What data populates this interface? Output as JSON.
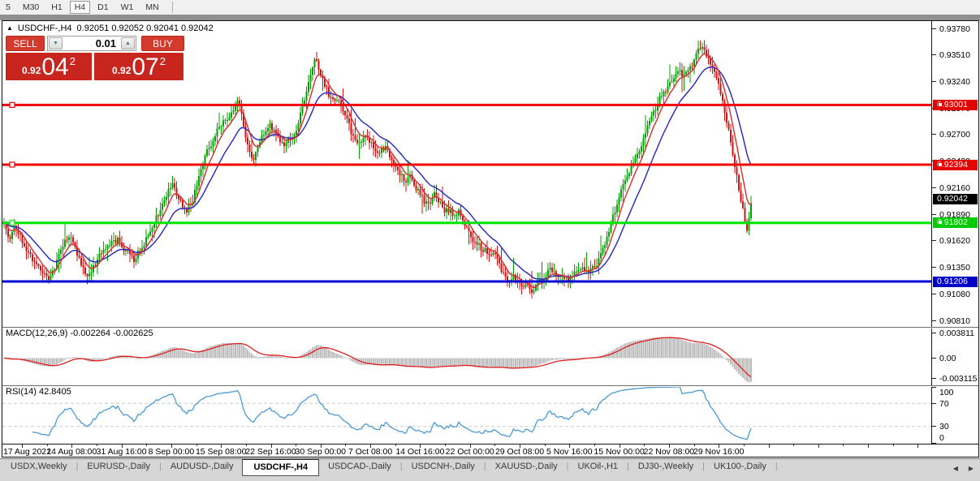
{
  "toolbar": {
    "timeframes": [
      "5",
      "M30",
      "H1",
      "H4",
      "D1",
      "W1",
      "MN"
    ],
    "active": "H4"
  },
  "window": {
    "title": "USDCHF-,H4",
    "quotes_text": "0.92051 0.92052 0.92041 0.92042"
  },
  "icons": {
    "collapse": "▲",
    "spin_down": "▼",
    "spin_up": "▲",
    "tab_nav_left": "◀",
    "tab_nav_right": "▶"
  },
  "trade_panel": {
    "sell_label": "SELL",
    "buy_label": "BUY",
    "lot_value": "0.01",
    "sell_price": {
      "small": "0.92",
      "big": "04",
      "sup": "2"
    },
    "buy_price": {
      "small": "0.92",
      "big": "07",
      "sup": "2"
    }
  },
  "price_axis": {
    "min": 0.9081,
    "max": 0.9378,
    "ticks": [
      "0.93780",
      "0.93510",
      "0.93240",
      "0.92970",
      "0.92700",
      "0.92430",
      "0.92160",
      "0.91890",
      "0.91620",
      "0.91350",
      "0.91080",
      "0.90810"
    ]
  },
  "hlines": [
    {
      "price": 0.93001,
      "label": "0.93001",
      "color": "#f20000",
      "badge_bg": "#e40000",
      "markers": true
    },
    {
      "price": 0.92394,
      "label": "0.92394",
      "color": "#f20000",
      "badge_bg": "#e40000",
      "markers": true
    },
    {
      "price": 0.91802,
      "label": "0.91802",
      "color": "#00e400",
      "badge_bg": "#00cc00",
      "markers": true
    },
    {
      "price": 0.91206,
      "label": "0.91206",
      "color": "#0000d8",
      "badge_bg": "#0000c8",
      "markers": false
    }
  ],
  "current_price": {
    "label": "0.92042",
    "value": 0.92042,
    "bg": "#000000"
  },
  "macd": {
    "title": "MACD(12,26,9) -0.002264 -0.002625",
    "axis": [
      {
        "label": "0.003811",
        "value": 0.003811
      },
      {
        "label": "0.00",
        "value": 0
      },
      {
        "label": "-0.003115",
        "value": -0.003115
      }
    ]
  },
  "rsi": {
    "title": "RSI(14) 42.8405",
    "axis": [
      {
        "label": "100",
        "value": 100
      },
      {
        "label": "70",
        "value": 70
      },
      {
        "label": "30",
        "value": 30
      },
      {
        "label": "0",
        "value": 0
      }
    ],
    "levels": [
      70,
      30
    ]
  },
  "time_axis": {
    "labels": [
      "17 Aug 2021",
      "24 Aug 08:00",
      "31 Aug 16:00",
      "8 Sep 00:00",
      "15 Sep 08:00",
      "22 Sep 16:00",
      "30 Sep 00:00",
      "7 Oct 08:00",
      "14 Oct 16:00",
      "22 Oct 00:00",
      "29 Oct 08:00",
      "5 Nov 16:00",
      "15 Nov 00:00",
      "22 Nov 08:00",
      "29 Nov 16:00"
    ]
  },
  "tabs": {
    "items": [
      "USDX,Weekly",
      "EURUSD-,Daily",
      "AUDUSD-,Daily",
      "USDCHF-,H4",
      "USDCAD-,Daily",
      "USDCNH-,Daily",
      "XAUUSD-,Daily",
      "UKOil-,H1",
      "DJ30-,Weekly",
      "UK100-,Daily"
    ],
    "active_index": 3
  },
  "colors": {
    "up": "#00a200",
    "down": "#cf1313",
    "ma_fast": "#e22828",
    "ma_slow": "#2424c4",
    "macd_hist": "#bdbdbd",
    "macd_signal": "#e01e1e",
    "rsi_line": "#4a9ad4",
    "rsi_level": "#c8c8c8"
  },
  "chart_data": {
    "type": "candlestick",
    "symbol": "USDCHF-",
    "period": "H4",
    "open_high_low_close_current": [
      0.92051,
      0.92052,
      0.92041,
      0.92042
    ],
    "indicators": [
      "MACD(12,26,9) = -0.002264 / signal -0.002625",
      "RSI(14) = 42.8405"
    ],
    "y_range": [
      0.9081,
      0.9378
    ],
    "x_labels": [
      "17 Aug 2021",
      "24 Aug 08:00",
      "31 Aug 16:00",
      "8 Sep 00:00",
      "15 Sep 08:00",
      "22 Sep 16:00",
      "30 Sep 00:00",
      "7 Oct 08:00",
      "14 Oct 16:00",
      "22 Oct 00:00",
      "29 Oct 08:00",
      "5 Nov 16:00",
      "15 Nov 00:00",
      "22 Nov 08:00",
      "29 Nov 16:00"
    ],
    "horizontal_levels": [
      0.93001,
      0.92394,
      0.91802,
      0.91206
    ],
    "price_anchors": [
      [
        0,
        0.91858
      ],
      [
        8,
        0.91635
      ],
      [
        16,
        0.91775
      ],
      [
        26,
        0.91594
      ],
      [
        36,
        0.91445
      ],
      [
        48,
        0.9133
      ],
      [
        56,
        0.91231
      ],
      [
        64,
        0.9133
      ],
      [
        74,
        0.91577
      ],
      [
        84,
        0.91676
      ],
      [
        94,
        0.91445
      ],
      [
        104,
        0.91247
      ],
      [
        112,
        0.91346
      ],
      [
        122,
        0.91511
      ],
      [
        132,
        0.91594
      ],
      [
        142,
        0.91627
      ],
      [
        152,
        0.91511
      ],
      [
        162,
        0.91429
      ],
      [
        172,
        0.91553
      ],
      [
        182,
        0.91742
      ],
      [
        192,
        0.91891
      ],
      [
        202,
        0.92089
      ],
      [
        210,
        0.92213
      ],
      [
        218,
        0.92023
      ],
      [
        226,
        0.91924
      ],
      [
        234,
        0.92006
      ],
      [
        242,
        0.92295
      ],
      [
        250,
        0.92501
      ],
      [
        258,
        0.926
      ],
      [
        266,
        0.9279
      ],
      [
        274,
        0.92848
      ],
      [
        282,
        0.92914
      ],
      [
        291,
        0.93079
      ],
      [
        297,
        0.9279
      ],
      [
        303,
        0.92543
      ],
      [
        309,
        0.92419
      ],
      [
        315,
        0.92584
      ],
      [
        322,
        0.92724
      ],
      [
        330,
        0.9279
      ],
      [
        338,
        0.92666
      ],
      [
        346,
        0.926
      ],
      [
        354,
        0.9265
      ],
      [
        362,
        0.92749
      ],
      [
        370,
        0.92996
      ],
      [
        378,
        0.93285
      ],
      [
        385,
        0.93491
      ],
      [
        390,
        0.93368
      ],
      [
        395,
        0.93244
      ],
      [
        400,
        0.93145
      ],
      [
        406,
        0.93038
      ],
      [
        412,
        0.93079
      ],
      [
        418,
        0.92996
      ],
      [
        424,
        0.92873
      ],
      [
        430,
        0.92708
      ],
      [
        436,
        0.92625
      ],
      [
        442,
        0.926
      ],
      [
        448,
        0.92683
      ],
      [
        454,
        0.926
      ],
      [
        460,
        0.92501
      ],
      [
        466,
        0.92543
      ],
      [
        472,
        0.92567
      ],
      [
        478,
        0.9246
      ],
      [
        484,
        0.92378
      ],
      [
        490,
        0.92295
      ],
      [
        496,
        0.92213
      ],
      [
        502,
        0.9227
      ],
      [
        508,
        0.92188
      ],
      [
        514,
        0.92089
      ],
      [
        520,
        0.92023
      ],
      [
        526,
        0.9199
      ],
      [
        532,
        0.92089
      ],
      [
        538,
        0.92023
      ],
      [
        544,
        0.9194
      ],
      [
        550,
        0.91924
      ],
      [
        556,
        0.91883
      ],
      [
        562,
        0.91907
      ],
      [
        568,
        0.918
      ],
      [
        574,
        0.91718
      ],
      [
        580,
        0.91635
      ],
      [
        586,
        0.91577
      ],
      [
        592,
        0.91528
      ],
      [
        598,
        0.91495
      ],
      [
        604,
        0.91511
      ],
      [
        610,
        0.91412
      ],
      [
        616,
        0.9128
      ],
      [
        622,
        0.91198
      ],
      [
        628,
        0.91264
      ],
      [
        634,
        0.91223
      ],
      [
        640,
        0.91165
      ],
      [
        646,
        0.91181
      ],
      [
        652,
        0.91115
      ],
      [
        658,
        0.91181
      ],
      [
        664,
        0.91223
      ],
      [
        670,
        0.9128
      ],
      [
        676,
        0.9133
      ],
      [
        682,
        0.91264
      ],
      [
        688,
        0.91247
      ],
      [
        694,
        0.91223
      ],
      [
        700,
        0.91264
      ],
      [
        706,
        0.9128
      ],
      [
        712,
        0.91305
      ],
      [
        718,
        0.91346
      ],
      [
        724,
        0.91305
      ],
      [
        730,
        0.91363
      ],
      [
        736,
        0.91445
      ],
      [
        742,
        0.91594
      ],
      [
        748,
        0.91759
      ],
      [
        754,
        0.91924
      ],
      [
        760,
        0.92089
      ],
      [
        766,
        0.92213
      ],
      [
        772,
        0.9232
      ],
      [
        778,
        0.92419
      ],
      [
        784,
        0.92543
      ],
      [
        790,
        0.92666
      ],
      [
        796,
        0.92815
      ],
      [
        802,
        0.9293
      ],
      [
        808,
        0.93038
      ],
      [
        814,
        0.9312
      ],
      [
        820,
        0.93203
      ],
      [
        826,
        0.93285
      ],
      [
        832,
        0.93343
      ],
      [
        838,
        0.9331
      ],
      [
        844,
        0.93326
      ],
      [
        850,
        0.93409
      ],
      [
        856,
        0.93557
      ],
      [
        862,
        0.9359
      ],
      [
        868,
        0.93475
      ],
      [
        874,
        0.93392
      ],
      [
        880,
        0.93285
      ],
      [
        886,
        0.93079
      ],
      [
        892,
        0.92831
      ],
      [
        898,
        0.92584
      ],
      [
        904,
        0.92295
      ],
      [
        910,
        0.92023
      ],
      [
        914,
        0.91841
      ],
      [
        918,
        0.91718
      ],
      [
        921,
        0.91965
      ],
      [
        924,
        0.92039
      ]
    ]
  }
}
